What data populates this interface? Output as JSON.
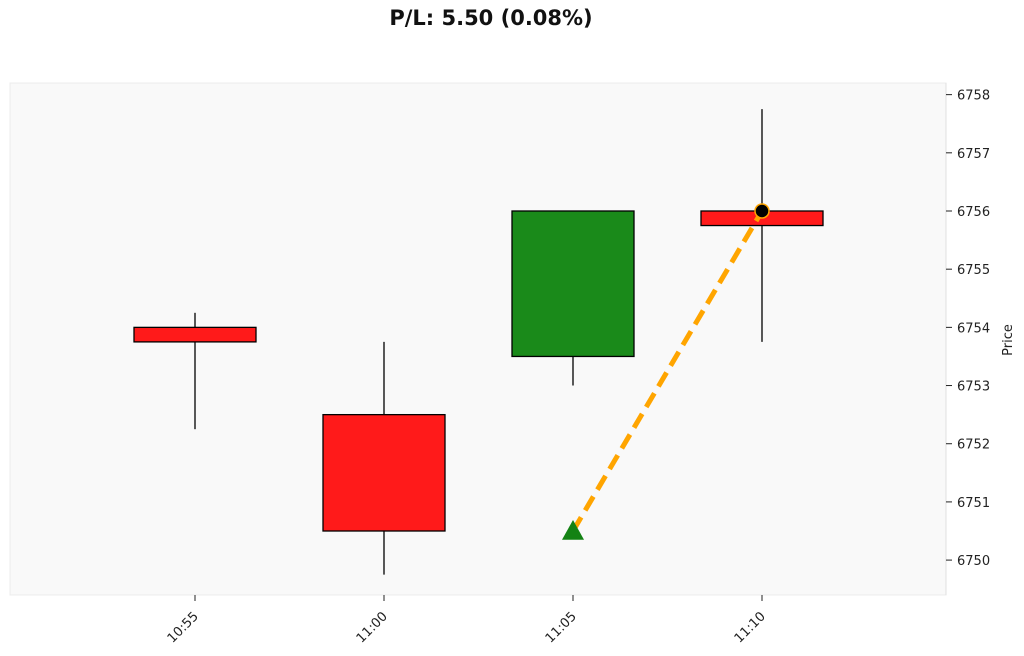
{
  "chart_data": {
    "type": "candlestick",
    "title": "P/L: 5.50 (0.08%)",
    "ylabel": "Price",
    "xlabel": "",
    "x_ticks": [
      "10:55",
      "11:00",
      "11:05",
      "11:10"
    ],
    "y_ticks": [
      6750,
      6751,
      6752,
      6753,
      6754,
      6755,
      6756,
      6757,
      6758
    ],
    "ylim": [
      6749.4,
      6758.2
    ],
    "candles": [
      {
        "time": "10:55",
        "open": 6754.0,
        "high": 6754.25,
        "low": 6752.25,
        "close": 6753.75
      },
      {
        "time": "11:00",
        "open": 6752.5,
        "high": 6753.75,
        "low": 6749.75,
        "close": 6750.5
      },
      {
        "time": "11:05",
        "open": 6753.5,
        "high": 6756.0,
        "low": 6753.0,
        "close": 6756.0
      },
      {
        "time": "11:10",
        "open": 6756.0,
        "high": 6757.75,
        "low": 6753.75,
        "close": 6755.75
      }
    ],
    "trade": {
      "entry": {
        "time": "11:05",
        "price": 6750.5,
        "marker": "triangle-up"
      },
      "exit": {
        "time": "11:10",
        "price": 6756.0,
        "marker": "circle"
      }
    },
    "grid": false,
    "colors": {
      "up": "#1a8a1a",
      "down": "#ff1a1a",
      "trade_line": "#ffa500",
      "entry_marker": "#148214",
      "exit_marker": "#000000",
      "plot_bg": "#f9f9f9"
    }
  }
}
